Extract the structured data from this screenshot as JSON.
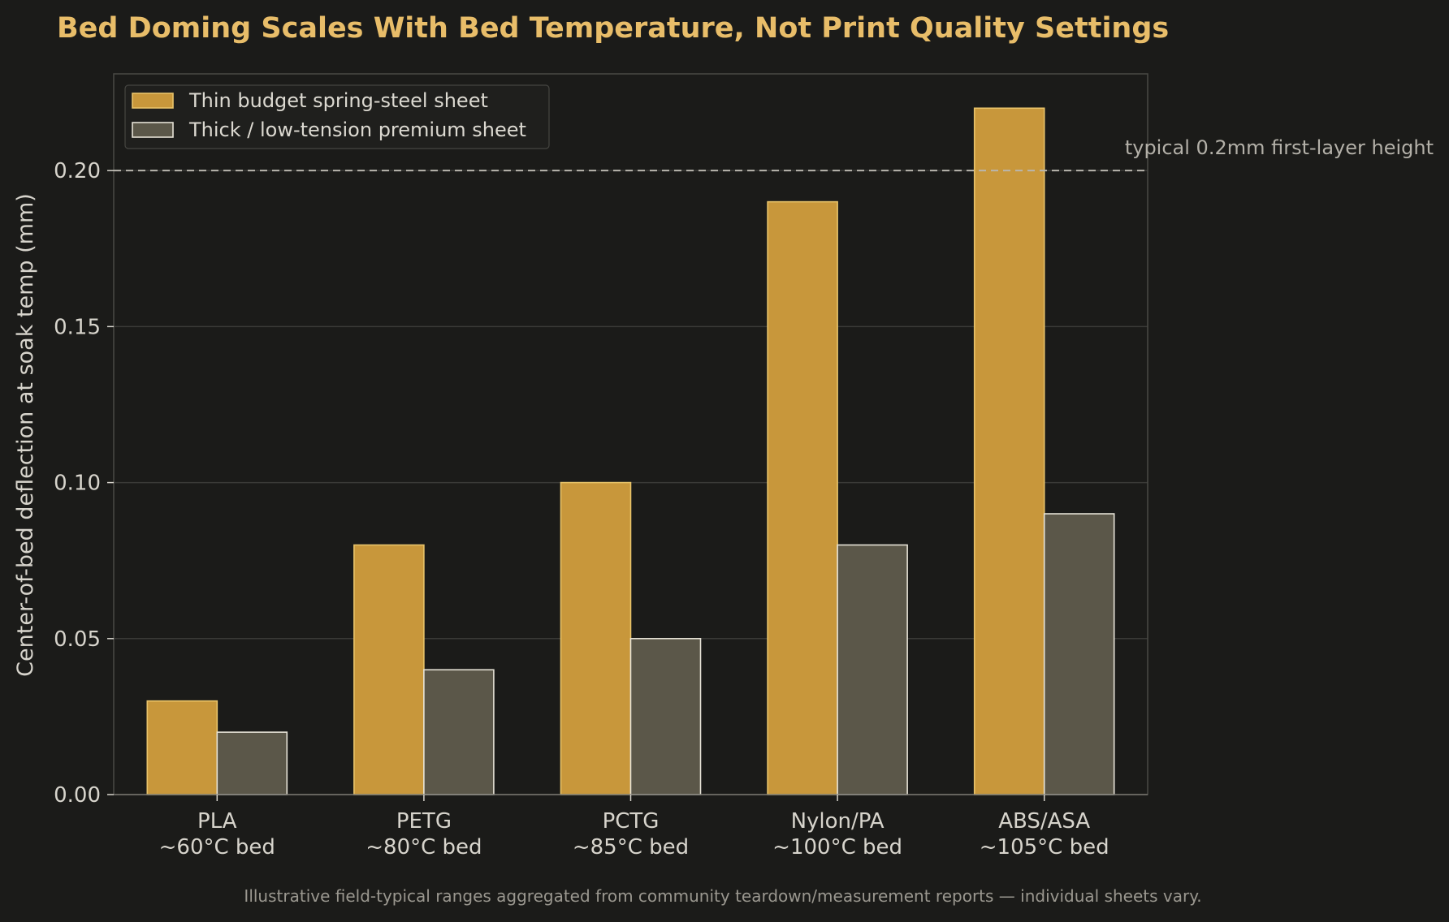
{
  "chart_data": {
    "type": "bar",
    "title": "Bed Doming Scales With Bed Temperature, Not Print Quality Settings",
    "ylabel": "Center-of-bed deflection at soak temp (mm)",
    "xlabel": "",
    "categories": [
      [
        "PLA",
        "~60°C bed"
      ],
      [
        "PETG",
        "~80°C bed"
      ],
      [
        "PCTG",
        "~85°C bed"
      ],
      [
        "Nylon/PA",
        "~100°C bed"
      ],
      [
        "ABS/ASA",
        "~105°C bed"
      ]
    ],
    "series": [
      {
        "name": "Thin budget spring-steel sheet",
        "values": [
          0.03,
          0.08,
          0.1,
          0.19,
          0.22
        ],
        "color": "#c8973b",
        "edge": "#e8c36a"
      },
      {
        "name": "Thick / low-tension premium sheet",
        "values": [
          0.02,
          0.04,
          0.05,
          0.08,
          0.09
        ],
        "color": "#5b5749",
        "edge": "#e6e2d6"
      }
    ],
    "ylim": [
      0,
      0.231
    ],
    "yticks": [
      "0.00",
      "0.05",
      "0.10",
      "0.15",
      "0.20"
    ],
    "grid": true,
    "legend_position": "top-left",
    "reference_line": {
      "value": 0.2,
      "label": "typical 0.2mm first-layer height",
      "color": "#b9b6ae"
    },
    "footnote": "Illustrative field-typical ranges aggregated from community teardown/measurement reports — individual sheets vary.",
    "colors": {
      "background": "#1b1b19",
      "title": "#e8bd69",
      "grid": "#3a3a37",
      "frame": "#4a4a46"
    }
  }
}
